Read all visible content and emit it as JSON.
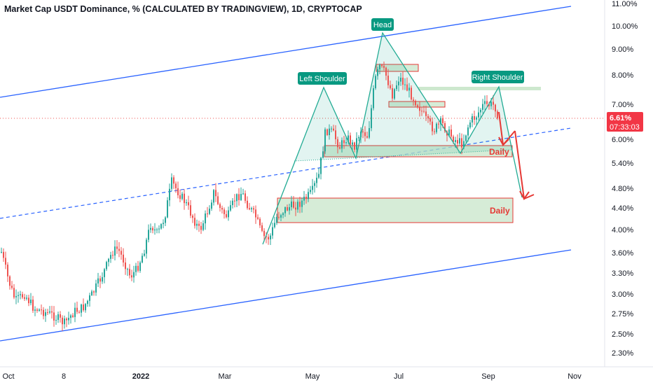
{
  "title": "Market Cap USDT Dominance, % (CALCULATED BY TRADINGVIEW), 1D, CRYPTOCAP",
  "chart_data": {
    "type": "candlestick",
    "scale": "log",
    "ylim": [
      2.2,
      11.2
    ],
    "y_ticks": [
      "11.00%",
      "10.00%",
      "9.00%",
      "8.00%",
      "7.00%",
      "6.00%",
      "5.40%",
      "4.80%",
      "4.40%",
      "4.00%",
      "3.60%",
      "3.30%",
      "3.00%",
      "2.75%",
      "2.50%",
      "2.30%"
    ],
    "y_tick_values": [
      11.0,
      10.0,
      9.0,
      8.0,
      7.0,
      6.0,
      5.4,
      4.8,
      4.4,
      4.0,
      3.6,
      3.3,
      3.0,
      2.75,
      2.5,
      2.3
    ],
    "x_ticks": [
      "Oct",
      "8",
      "2022",
      "Mar",
      "May",
      "Jul",
      "Sep",
      "Nov"
    ],
    "x_tick_bold": [
      "2022"
    ],
    "current_price": {
      "label": "6.61%",
      "value": 6.61,
      "countdown": "07:33:03"
    },
    "annotations": {
      "left_shoulder": "Left Shoulder",
      "head": "Head",
      "right_shoulder": "Right Shoulder",
      "daily_upper": "Daily",
      "daily_lower": "Daily"
    },
    "colors": {
      "up": "#26a69a",
      "down": "#ef5350",
      "channel": "#2962ff",
      "pattern": "#22ab94",
      "zone_fill": "#c8e6c9",
      "zone_border": "#e53935",
      "projection": "#e53935",
      "price_label": "#f23645"
    }
  }
}
